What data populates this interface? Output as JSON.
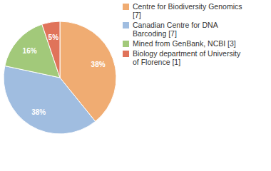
{
  "chart_data": {
    "type": "pie",
    "categories": [
      "Centre for Biodiversity Genomics [7]",
      "Canadian Centre for DNA Barcoding [7]",
      "Mined from GenBank, NCBI [3]",
      "Biology department of University of Florence [1]"
    ],
    "values": [
      38,
      38,
      16,
      5
    ],
    "value_labels": [
      "38%",
      "38%",
      "16%",
      "5%"
    ],
    "colors": [
      "#f0ac72",
      "#a0bde0",
      "#a2c97a",
      "#e0735a"
    ],
    "data_labels": true,
    "legend": "top-right"
  }
}
